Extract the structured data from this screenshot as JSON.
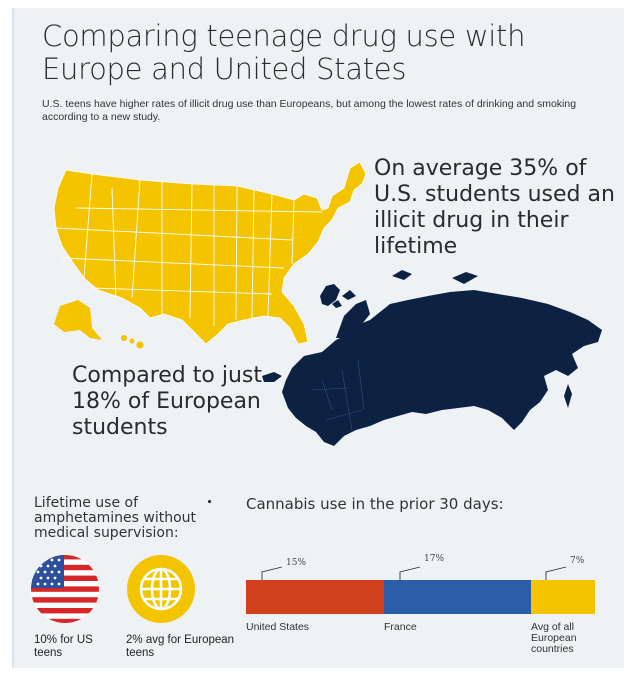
{
  "title": "Comparing teenage drug use with Europe and United States",
  "subtitle": "U.S. teens have higher rates of illicit drug use than Europeans, but among the lowest rates of drinking and smoking according to a new study.",
  "us_stat": "On average 35% of U.S. students used an illicit drug in their lifetime",
  "eu_stat": "Compared to just 18% of European students",
  "amphetamines": {
    "heading": "Lifetime use of amphetamines without medical supervision:",
    "us_icon": "us-flag-icon",
    "eu_icon": "globe-icon",
    "us_caption": "10% for US teens",
    "eu_caption": "2% avg for European teens"
  },
  "cannabis": {
    "heading": "Cannabis use in the prior 30 days:",
    "segments": [
      {
        "label": "United States",
        "pct": "15%",
        "value": 15,
        "color": "#d3401d"
      },
      {
        "label": "France",
        "pct": "17%",
        "value": 17,
        "color": "#2a5ea8"
      },
      {
        "label": "Avg of all European countries",
        "pct": "7%",
        "value": 7,
        "color": "#f5c400"
      }
    ]
  },
  "colors": {
    "us_map": "#f5c400",
    "europe_map": "#0d2143",
    "background": "#eef2f5"
  }
}
